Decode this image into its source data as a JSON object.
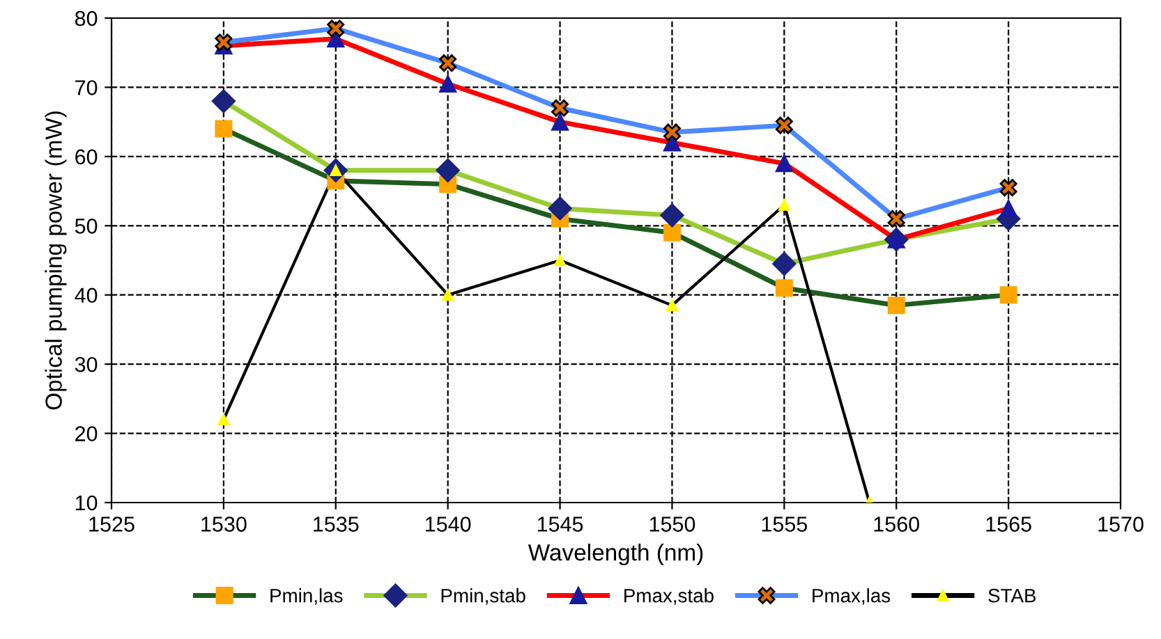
{
  "chart_data": {
    "type": "line",
    "xlabel": "Wavelength (nm)",
    "ylabel": "Optical pumping power (mW)",
    "x": [
      1530,
      1535,
      1540,
      1545,
      1550,
      1555,
      1560,
      1565
    ],
    "series": [
      {
        "name": "Pmin,las",
        "color": "#1f5c1f",
        "marker": "square",
        "values": [
          64,
          56.5,
          56,
          51,
          49,
          41,
          38.5,
          40
        ]
      },
      {
        "name": "Pmin,stab",
        "color": "#99cc33",
        "marker": "diamond",
        "values": [
          68,
          58,
          58,
          52.5,
          51.5,
          44.5,
          48,
          51
        ]
      },
      {
        "name": "Pmax,stab",
        "color": "#ff0000",
        "marker": "triangle",
        "values": [
          76,
          77,
          70.5,
          65,
          62,
          59,
          48,
          52.5
        ]
      },
      {
        "name": "Pmax,las",
        "color": "#4d88ff",
        "marker": "cross",
        "values": [
          76.5,
          78.5,
          73.5,
          67,
          63.5,
          64.5,
          51,
          55.5
        ]
      },
      {
        "name": "STAB",
        "color": "#000000",
        "marker": "triangle",
        "x": [
          1530,
          1535,
          1540,
          1545,
          1550,
          1555,
          1558.8
        ],
        "values": [
          22,
          58,
          40,
          45,
          38.5,
          53,
          10
        ]
      }
    ],
    "xlim": [
      1525,
      1570
    ],
    "xticks": [
      1525,
      1530,
      1535,
      1540,
      1545,
      1550,
      1555,
      1560,
      1565,
      1570
    ],
    "ylim": [
      10,
      80
    ],
    "yticks": [
      10,
      20,
      30,
      40,
      50,
      60,
      70,
      80
    ],
    "grid": true,
    "legend": "bottom",
    "line_style": "solid"
  }
}
